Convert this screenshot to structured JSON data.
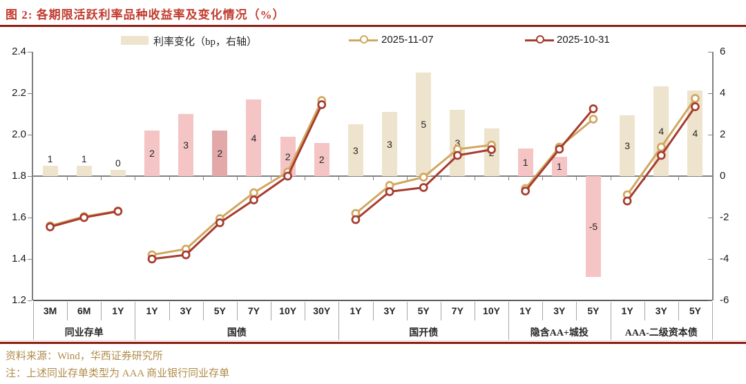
{
  "title": "图 2:  各期限活跃利率品种收益率及变化情况（%）",
  "legend": {
    "bars_label": "利率变化（bp，右轴）",
    "series1_label": "2025-11-07",
    "series2_label": "2025-10-31"
  },
  "footer": {
    "source": "资料来源：Wind，华西证券研究所",
    "note": "注：上述同业存单类型为 AAA 商业银行同业存单"
  },
  "colors": {
    "title_red": "#c23b2e",
    "rule_dark_red": "#8a1d12",
    "bar_beige": "#eee3cc",
    "bar_pink": "#f5c4c5",
    "bar_pink_dark": "#e3a9a9",
    "line_tan": "#d0a75f",
    "line_red": "#a63c2f",
    "footer_gold": "#b08c4a",
    "axis_gray": "#808080",
    "sep_gray": "#a6a6a6",
    "light_pink_rule": "#f5caca"
  },
  "chart_data": {
    "type": "bar+line",
    "title": "各期限活跃利率品种收益率及变化情况（%）",
    "left_axis": {
      "min": 1.2,
      "max": 2.4,
      "tick_labels": [
        "2.4",
        "2.2",
        "2.0",
        "1.8",
        "1.6",
        "1.4",
        "1.2"
      ]
    },
    "right_axis": {
      "min": -6,
      "max": 6,
      "tick_labels": [
        "6",
        "4",
        "2",
        "0",
        "-2",
        "-4",
        "-6"
      ],
      "label": "bp"
    },
    "bar_series_name": "利率变化（bp，右轴）",
    "line_series": [
      "2025-11-07",
      "2025-10-31"
    ],
    "zero_line_value": 1.8,
    "groups": [
      {
        "name": "同业存单",
        "categories": [
          "3M",
          "6M",
          "1Y"
        ],
        "bar_style": "beige",
        "bar_labels": [
          1,
          1,
          0
        ],
        "bar_bp": [
          0.5,
          0.5,
          0.3
        ],
        "y_2025_11_07": [
          1.56,
          1.605,
          1.632
        ],
        "y_2025_10_31": [
          1.555,
          1.6,
          1.63
        ]
      },
      {
        "name": "国债",
        "categories": [
          "1Y",
          "3Y",
          "5Y",
          "7Y",
          "10Y",
          "30Y"
        ],
        "bar_style": "pink",
        "bar_style_overrides": {
          "2": "pink-dark"
        },
        "bar_labels": [
          2,
          3,
          2,
          4,
          2,
          2
        ],
        "bar_bp": [
          2.2,
          3.0,
          2.2,
          3.7,
          1.9,
          1.6
        ],
        "y_2025_11_07": [
          1.42,
          1.448,
          1.595,
          1.72,
          1.82,
          2.165
        ],
        "y_2025_10_31": [
          1.4,
          1.42,
          1.575,
          1.685,
          1.8,
          2.145
        ]
      },
      {
        "name": "国开债",
        "categories": [
          "1Y",
          "3Y",
          "5Y",
          "7Y",
          "10Y"
        ],
        "bar_style": "beige",
        "bar_labels": [
          3,
          3,
          5,
          3,
          2
        ],
        "bar_bp": [
          2.5,
          3.1,
          5.0,
          3.2,
          2.3
        ],
        "y_2025_11_07": [
          1.62,
          1.755,
          1.795,
          1.93,
          1.95
        ],
        "y_2025_10_31": [
          1.59,
          1.725,
          1.745,
          1.9,
          1.928
        ]
      },
      {
        "name": "隐含AA+城投",
        "categories": [
          "1Y",
          "3Y",
          "5Y"
        ],
        "bar_style": "pink",
        "bar_labels": [
          1,
          1,
          -5
        ],
        "bar_bp": [
          1.35,
          0.95,
          -4.85
        ],
        "y_2025_11_07": [
          1.74,
          1.94,
          2.075
        ],
        "y_2025_10_31": [
          1.728,
          1.93,
          2.125
        ]
      },
      {
        "name": "AAA-二级资本债",
        "categories": [
          "1Y",
          "3Y",
          "5Y"
        ],
        "bar_style": "beige",
        "bar_labels": [
          3,
          4,
          4
        ],
        "bar_bp": [
          2.95,
          4.35,
          4.15
        ],
        "y_2025_11_07": [
          1.71,
          1.94,
          2.175
        ],
        "y_2025_10_31": [
          1.68,
          1.9,
          2.135
        ]
      }
    ]
  }
}
